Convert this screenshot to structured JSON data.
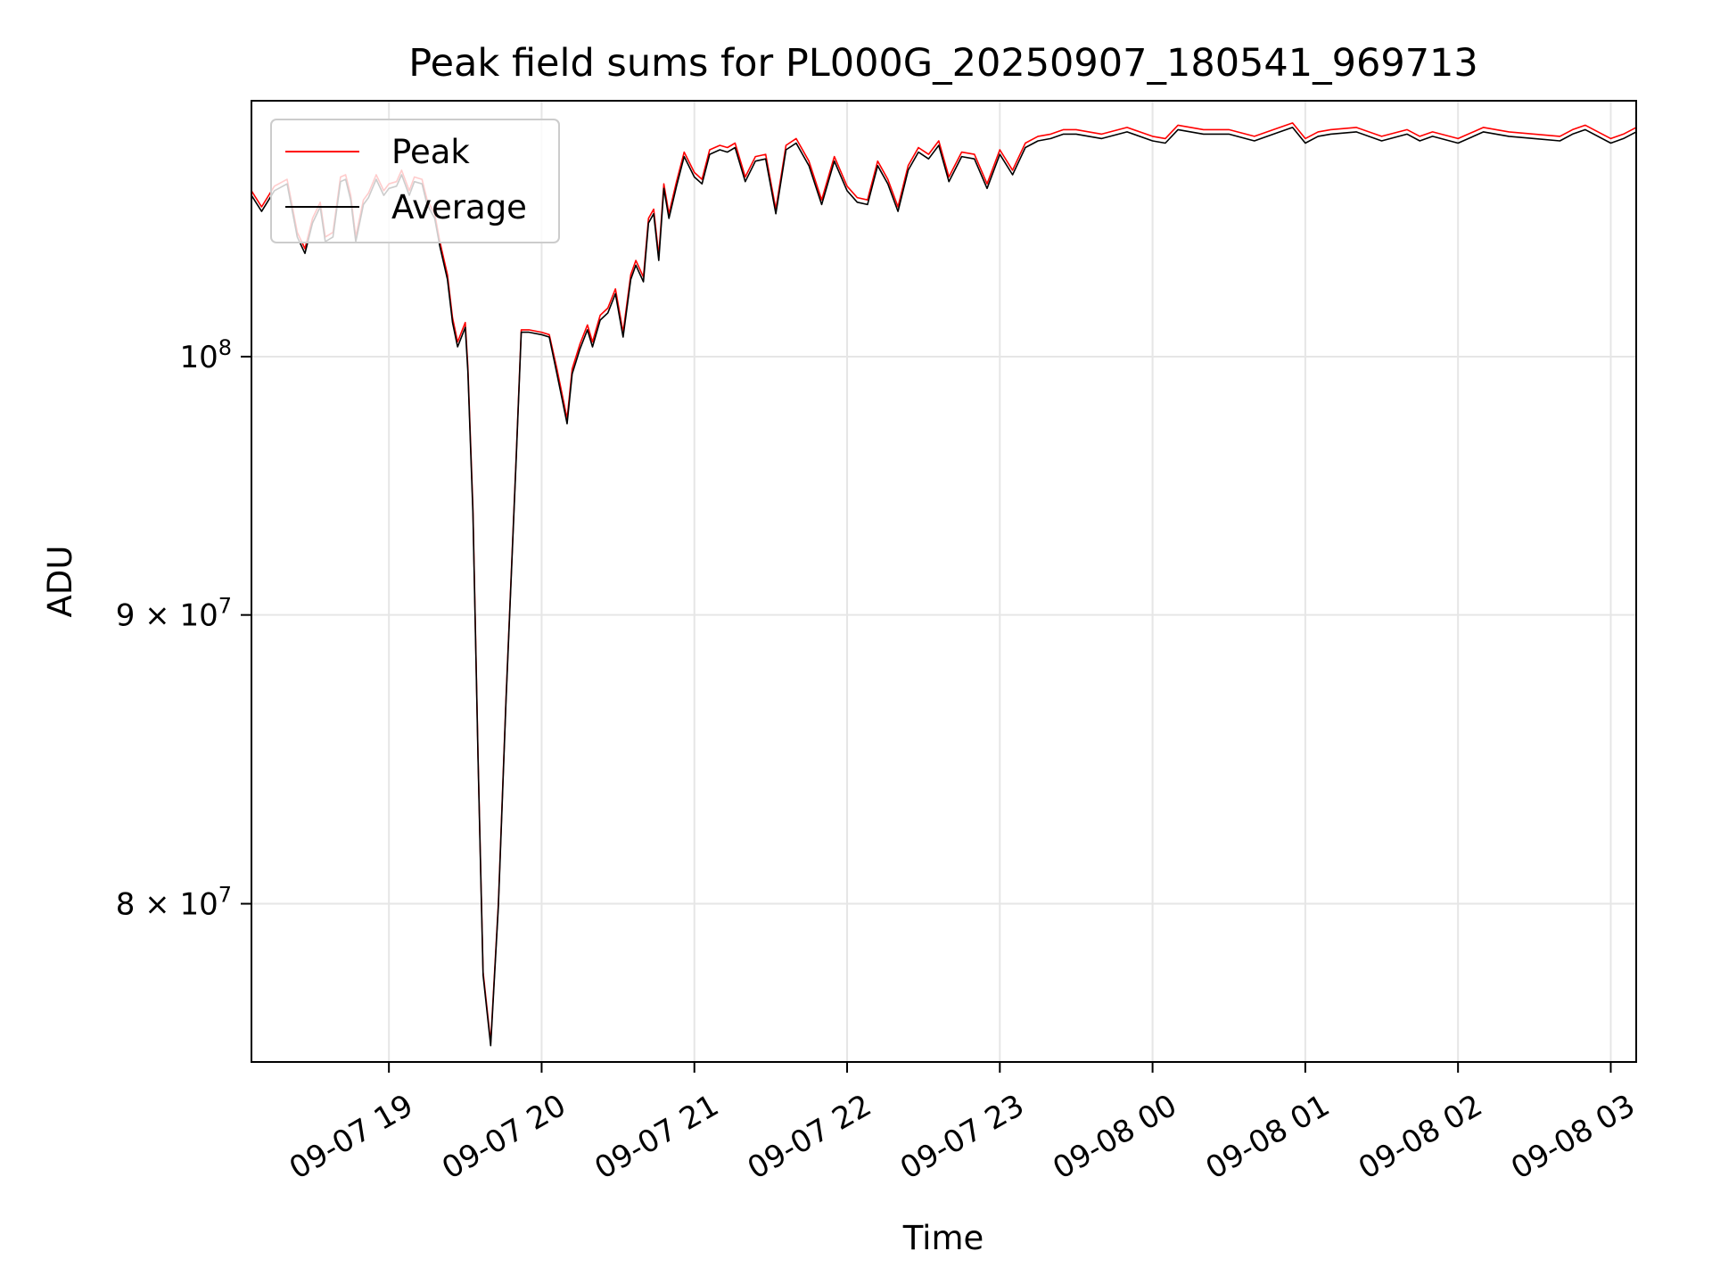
{
  "chart_data": {
    "type": "line",
    "title": "Peak field sums for PL000G_20250907_180541_969713",
    "xlabel": "Time",
    "ylabel": "ADU",
    "yscale": "log",
    "grid": true,
    "legend_position": "upper-left",
    "xlim": [
      "2025-09-07 18:06",
      "2025-09-08 03:10"
    ],
    "ylim": [
      75000000,
      111000000
    ],
    "x_ticks": [
      {
        "t": "2025-09-07 19:00",
        "label": "09-07 19"
      },
      {
        "t": "2025-09-07 20:00",
        "label": "09-07 20"
      },
      {
        "t": "2025-09-07 21:00",
        "label": "09-07 21"
      },
      {
        "t": "2025-09-07 22:00",
        "label": "09-07 22"
      },
      {
        "t": "2025-09-07 23:00",
        "label": "09-07 23"
      },
      {
        "t": "2025-09-08 00:00",
        "label": "09-08 00"
      },
      {
        "t": "2025-09-08 01:00",
        "label": "09-08 01"
      },
      {
        "t": "2025-09-08 02:00",
        "label": "09-08 02"
      },
      {
        "t": "2025-09-08 03:00",
        "label": "09-08 03"
      }
    ],
    "y_ticks": [
      {
        "value": 80000000,
        "label_base": "8 × 10",
        "label_exp": "7"
      },
      {
        "value": 90000000,
        "label_base": "9 × 10",
        "label_exp": "7"
      },
      {
        "value": 100000000,
        "label_base": "10",
        "label_exp": "8"
      }
    ],
    "series": [
      {
        "name": "Peak",
        "color": "#ff0000",
        "x": [
          "2025-09-07 18:06",
          "2025-09-07 18:10",
          "2025-09-07 18:15",
          "2025-09-07 18:20",
          "2025-09-07 18:24",
          "2025-09-07 18:27",
          "2025-09-07 18:30",
          "2025-09-07 18:33",
          "2025-09-07 18:35",
          "2025-09-07 18:38",
          "2025-09-07 18:41",
          "2025-09-07 18:43",
          "2025-09-07 18:45",
          "2025-09-07 18:47",
          "2025-09-07 18:50",
          "2025-09-07 18:52",
          "2025-09-07 18:55",
          "2025-09-07 18:58",
          "2025-09-07 19:00",
          "2025-09-07 19:03",
          "2025-09-07 19:05",
          "2025-09-07 19:08",
          "2025-09-07 19:10",
          "2025-09-07 19:13",
          "2025-09-07 19:15",
          "2025-09-07 19:18",
          "2025-09-07 19:20",
          "2025-09-07 19:23",
          "2025-09-07 19:25",
          "2025-09-07 19:27",
          "2025-09-07 19:30",
          "2025-09-07 19:31",
          "2025-09-07 19:33",
          "2025-09-07 19:35",
          "2025-09-07 19:37",
          "2025-09-07 19:40",
          "2025-09-07 19:43",
          "2025-09-07 19:46",
          "2025-09-07 19:50",
          "2025-09-07 19:52",
          "2025-09-07 19:55",
          "2025-09-07 20:00",
          "2025-09-07 20:03",
          "2025-09-07 20:06",
          "2025-09-07 20:08",
          "2025-09-07 20:10",
          "2025-09-07 20:12",
          "2025-09-07 20:15",
          "2025-09-07 20:18",
          "2025-09-07 20:20",
          "2025-09-07 20:23",
          "2025-09-07 20:26",
          "2025-09-07 20:29",
          "2025-09-07 20:32",
          "2025-09-07 20:35",
          "2025-09-07 20:37",
          "2025-09-07 20:40",
          "2025-09-07 20:42",
          "2025-09-07 20:44",
          "2025-09-07 20:46",
          "2025-09-07 20:48",
          "2025-09-07 20:50",
          "2025-09-07 20:53",
          "2025-09-07 20:56",
          "2025-09-07 21:00",
          "2025-09-07 21:03",
          "2025-09-07 21:06",
          "2025-09-07 21:10",
          "2025-09-07 21:13",
          "2025-09-07 21:16",
          "2025-09-07 21:20",
          "2025-09-07 21:24",
          "2025-09-07 21:28",
          "2025-09-07 21:32",
          "2025-09-07 21:36",
          "2025-09-07 21:40",
          "2025-09-07 21:45",
          "2025-09-07 21:50",
          "2025-09-07 21:55",
          "2025-09-07 22:00",
          "2025-09-07 22:04",
          "2025-09-07 22:08",
          "2025-09-07 22:12",
          "2025-09-07 22:16",
          "2025-09-07 22:20",
          "2025-09-07 22:24",
          "2025-09-07 22:28",
          "2025-09-07 22:32",
          "2025-09-07 22:36",
          "2025-09-07 22:40",
          "2025-09-07 22:45",
          "2025-09-07 22:50",
          "2025-09-07 22:55",
          "2025-09-07 23:00",
          "2025-09-07 23:05",
          "2025-09-07 23:10",
          "2025-09-07 23:15",
          "2025-09-07 23:20",
          "2025-09-07 23:25",
          "2025-09-07 23:30",
          "2025-09-07 23:40",
          "2025-09-07 23:50",
          "2025-09-08 00:00",
          "2025-09-08 00:05",
          "2025-09-08 00:10",
          "2025-09-08 00:20",
          "2025-09-08 00:30",
          "2025-09-08 00:40",
          "2025-09-08 00:50",
          "2025-09-08 00:55",
          "2025-09-08 01:00",
          "2025-09-08 01:05",
          "2025-09-08 01:10",
          "2025-09-08 01:20",
          "2025-09-08 01:30",
          "2025-09-08 01:40",
          "2025-09-08 01:45",
          "2025-09-08 01:50",
          "2025-09-08 02:00",
          "2025-09-08 02:10",
          "2025-09-08 02:20",
          "2025-09-08 02:30",
          "2025-09-08 02:40",
          "2025-09-08 02:45",
          "2025-09-08 02:50",
          "2025-09-08 03:00",
          "2025-09-08 03:05",
          "2025-09-08 03:10"
        ],
        "y": [
          107000000,
          106300000,
          107200000,
          107500000,
          105200000,
          104500000,
          105800000,
          106500000,
          105000000,
          105200000,
          107600000,
          107700000,
          106800000,
          105000000,
          106600000,
          106900000,
          107700000,
          107000000,
          107300000,
          107400000,
          107900000,
          107000000,
          107600000,
          107500000,
          106600000,
          106000000,
          104800000,
          103400000,
          101600000,
          100600000,
          101400000,
          99600000,
          94000000,
          85000000,
          77800000,
          75600000,
          80000000,
          87000000,
          96000000,
          101100000,
          101100000,
          101000000,
          100900000,
          99500000,
          98500000,
          97500000,
          99500000,
          100500000,
          101300000,
          100600000,
          101700000,
          102000000,
          102800000,
          101000000,
          103400000,
          104000000,
          103300000,
          105800000,
          106200000,
          104200000,
          107300000,
          106000000,
          107400000,
          108700000,
          107800000,
          107500000,
          108800000,
          109000000,
          108900000,
          109100000,
          107600000,
          108500000,
          108600000,
          106200000,
          109000000,
          109300000,
          108300000,
          106600000,
          108500000,
          107200000,
          106700000,
          106600000,
          108300000,
          107500000,
          106300000,
          108100000,
          108900000,
          108600000,
          109200000,
          107600000,
          108700000,
          108600000,
          107300000,
          108800000,
          107900000,
          109100000,
          109400000,
          109500000,
          109700000,
          109700000,
          109500000,
          109800000,
          109400000,
          109300000,
          109900000,
          109700000,
          109700000,
          109400000,
          109800000,
          110000000,
          109300000,
          109600000,
          109700000,
          109800000,
          109400000,
          109700000,
          109400000,
          109600000,
          109300000,
          109800000,
          109600000,
          109500000,
          109400000,
          109700000,
          109900000,
          109300000,
          109500000,
          109800000
        ]
      },
      {
        "name": "Average",
        "color": "#000000",
        "x": [
          "2025-09-07 18:06",
          "2025-09-07 18:10",
          "2025-09-07 18:15",
          "2025-09-07 18:20",
          "2025-09-07 18:24",
          "2025-09-07 18:27",
          "2025-09-07 18:30",
          "2025-09-07 18:33",
          "2025-09-07 18:35",
          "2025-09-07 18:38",
          "2025-09-07 18:41",
          "2025-09-07 18:43",
          "2025-09-07 18:45",
          "2025-09-07 18:47",
          "2025-09-07 18:50",
          "2025-09-07 18:52",
          "2025-09-07 18:55",
          "2025-09-07 18:58",
          "2025-09-07 19:00",
          "2025-09-07 19:03",
          "2025-09-07 19:05",
          "2025-09-07 19:08",
          "2025-09-07 19:10",
          "2025-09-07 19:13",
          "2025-09-07 19:15",
          "2025-09-07 19:18",
          "2025-09-07 19:20",
          "2025-09-07 19:23",
          "2025-09-07 19:25",
          "2025-09-07 19:27",
          "2025-09-07 19:30",
          "2025-09-07 19:31",
          "2025-09-07 19:33",
          "2025-09-07 19:35",
          "2025-09-07 19:37",
          "2025-09-07 19:40",
          "2025-09-07 19:43",
          "2025-09-07 19:46",
          "2025-09-07 19:50",
          "2025-09-07 19:52",
          "2025-09-07 19:55",
          "2025-09-07 20:00",
          "2025-09-07 20:03",
          "2025-09-07 20:06",
          "2025-09-07 20:08",
          "2025-09-07 20:10",
          "2025-09-07 20:12",
          "2025-09-07 20:15",
          "2025-09-07 20:18",
          "2025-09-07 20:20",
          "2025-09-07 20:23",
          "2025-09-07 20:26",
          "2025-09-07 20:29",
          "2025-09-07 20:32",
          "2025-09-07 20:35",
          "2025-09-07 20:37",
          "2025-09-07 20:40",
          "2025-09-07 20:42",
          "2025-09-07 20:44",
          "2025-09-07 20:46",
          "2025-09-07 20:48",
          "2025-09-07 20:50",
          "2025-09-07 20:53",
          "2025-09-07 20:56",
          "2025-09-07 21:00",
          "2025-09-07 21:03",
          "2025-09-07 21:06",
          "2025-09-07 21:10",
          "2025-09-07 21:13",
          "2025-09-07 21:16",
          "2025-09-07 21:20",
          "2025-09-07 21:24",
          "2025-09-07 21:28",
          "2025-09-07 21:32",
          "2025-09-07 21:36",
          "2025-09-07 21:40",
          "2025-09-07 21:45",
          "2025-09-07 21:50",
          "2025-09-07 21:55",
          "2025-09-07 22:00",
          "2025-09-07 22:04",
          "2025-09-07 22:08",
          "2025-09-07 22:12",
          "2025-09-07 22:16",
          "2025-09-07 22:20",
          "2025-09-07 22:24",
          "2025-09-07 22:28",
          "2025-09-07 22:32",
          "2025-09-07 22:36",
          "2025-09-07 22:40",
          "2025-09-07 22:45",
          "2025-09-07 22:50",
          "2025-09-07 22:55",
          "2025-09-07 23:00",
          "2025-09-07 23:05",
          "2025-09-07 23:10",
          "2025-09-07 23:15",
          "2025-09-07 23:20",
          "2025-09-07 23:25",
          "2025-09-07 23:30",
          "2025-09-07 23:40",
          "2025-09-07 23:50",
          "2025-09-08 00:00",
          "2025-09-08 00:05",
          "2025-09-08 00:10",
          "2025-09-08 00:20",
          "2025-09-08 00:30",
          "2025-09-08 00:40",
          "2025-09-08 00:50",
          "2025-09-08 00:55",
          "2025-09-08 01:00",
          "2025-09-08 01:05",
          "2025-09-08 01:10",
          "2025-09-08 01:20",
          "2025-09-08 01:30",
          "2025-09-08 01:40",
          "2025-09-08 01:45",
          "2025-09-08 01:50",
          "2025-09-08 02:00",
          "2025-09-08 02:10",
          "2025-09-08 02:20",
          "2025-09-08 02:30",
          "2025-09-08 02:40",
          "2025-09-08 02:45",
          "2025-09-08 02:50",
          "2025-09-08 03:00",
          "2025-09-08 03:05",
          "2025-09-08 03:10"
        ],
        "y": [
          106800000,
          106100000,
          107000000,
          107300000,
          105000000,
          104300000,
          105600000,
          106300000,
          104800000,
          105000000,
          107400000,
          107500000,
          106600000,
          104800000,
          106400000,
          106700000,
          107500000,
          106800000,
          107100000,
          107200000,
          107700000,
          106800000,
          107400000,
          107300000,
          106400000,
          105800000,
          104600000,
          103200000,
          101400000,
          100400000,
          101200000,
          99400000,
          93800000,
          84900000,
          77700000,
          75500000,
          79900000,
          86900000,
          95900000,
          101000000,
          101000000,
          100900000,
          100800000,
          99300000,
          98300000,
          97300000,
          99300000,
          100300000,
          101100000,
          100400000,
          101500000,
          101800000,
          102600000,
          100800000,
          103200000,
          103800000,
          103100000,
          105600000,
          106000000,
          104000000,
          107100000,
          105800000,
          107200000,
          108500000,
          107600000,
          107300000,
          108600000,
          108800000,
          108700000,
          108900000,
          107400000,
          108300000,
          108400000,
          106000000,
          108800000,
          109100000,
          108100000,
          106400000,
          108300000,
          107000000,
          106500000,
          106400000,
          108100000,
          107300000,
          106100000,
          107900000,
          108700000,
          108400000,
          109000000,
          107400000,
          108500000,
          108400000,
          107100000,
          108600000,
          107700000,
          108900000,
          109200000,
          109300000,
          109500000,
          109500000,
          109300000,
          109600000,
          109200000,
          109100000,
          109700000,
          109500000,
          109500000,
          109200000,
          109600000,
          109800000,
          109100000,
          109400000,
          109500000,
          109600000,
          109200000,
          109500000,
          109200000,
          109400000,
          109100000,
          109600000,
          109400000,
          109300000,
          109200000,
          109500000,
          109700000,
          109100000,
          109300000,
          109600000
        ]
      }
    ]
  }
}
